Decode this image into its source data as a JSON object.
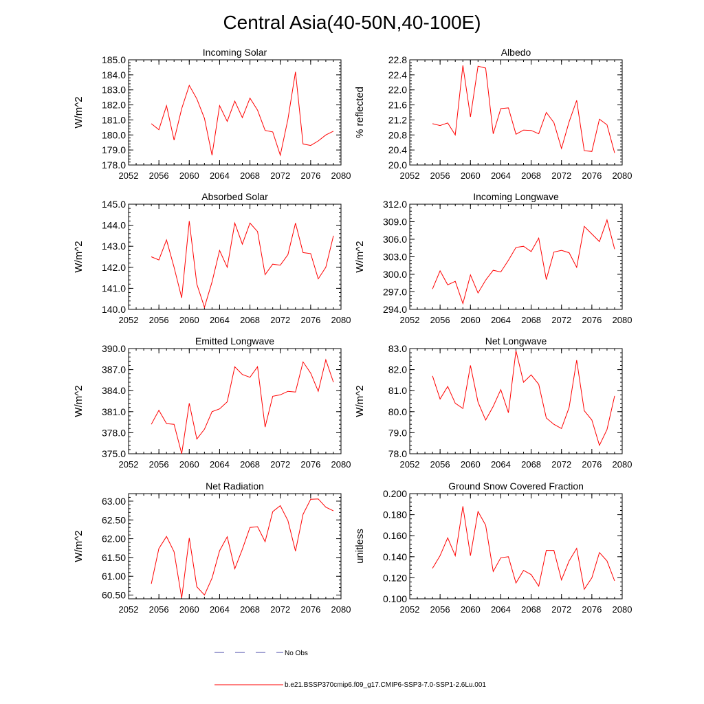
{
  "figure": {
    "title": "Central Asia(40-50N,40-100E)",
    "colors": {
      "series": "#ff0000",
      "obs": "#4a4aaa",
      "axis": "#000000"
    }
  },
  "legend": {
    "obs_label": "No Obs",
    "model_label": "b.e21.BSSP370cmip6.f09_g17.CMIP6-SSP3-7.0-SSP1-2.6Lu.001"
  },
  "chart_data": [
    {
      "type": "line",
      "title": "Incoming Solar",
      "ylabel": "W/m^2",
      "xlim": [
        2052,
        2080
      ],
      "ylim": [
        178.0,
        185.0
      ],
      "xticks": [
        2052,
        2056,
        2060,
        2064,
        2068,
        2072,
        2076,
        2080
      ],
      "xtick_labels": [
        "2052",
        "2056",
        "2060",
        "2064",
        "2068",
        "2072",
        "2076",
        "2080"
      ],
      "yticks": [
        178.0,
        179.0,
        180.0,
        181.0,
        182.0,
        183.0,
        184.0,
        185.0
      ],
      "ytick_labels": [
        "178.0",
        "179.0",
        "180.0",
        "181.0",
        "182.0",
        "183.0",
        "184.0",
        "185.0"
      ],
      "x": [
        2055,
        2056,
        2057,
        2058,
        2059,
        2060,
        2061,
        2062,
        2063,
        2064,
        2065,
        2066,
        2067,
        2068,
        2069,
        2070,
        2071,
        2072,
        2073,
        2074,
        2075,
        2076,
        2077,
        2078,
        2079
      ],
      "series": [
        {
          "name": "b.e21.BSSP370cmip6.f09_g17.CMIP6-SSP3-7.0-SSP1-2.6Lu.001",
          "values": [
            180.75,
            180.35,
            181.95,
            179.65,
            181.75,
            183.3,
            182.4,
            181.1,
            178.65,
            181.95,
            180.9,
            182.25,
            181.15,
            182.45,
            181.65,
            180.3,
            180.2,
            178.65,
            181.05,
            184.2,
            179.4,
            179.3,
            179.6,
            180.0,
            180.25
          ]
        }
      ]
    },
    {
      "type": "line",
      "title": "Albedo",
      "ylabel": "% reflected",
      "xlim": [
        2052,
        2080
      ],
      "ylim": [
        20.0,
        22.8
      ],
      "xticks": [
        2052,
        2056,
        2060,
        2064,
        2068,
        2072,
        2076,
        2080
      ],
      "xtick_labels": [
        "2052",
        "2056",
        "2060",
        "2064",
        "2068",
        "2072",
        "2076",
        "2080"
      ],
      "yticks": [
        20.0,
        20.4,
        20.8,
        21.2,
        21.6,
        22.0,
        22.4,
        22.8
      ],
      "ytick_labels": [
        "20.0",
        "20.4",
        "20.8",
        "21.2",
        "21.6",
        "22.0",
        "22.4",
        "22.8"
      ],
      "x": [
        2055,
        2056,
        2057,
        2058,
        2059,
        2060,
        2061,
        2062,
        2063,
        2064,
        2065,
        2066,
        2067,
        2068,
        2069,
        2070,
        2071,
        2072,
        2073,
        2074,
        2075,
        2076,
        2077,
        2078,
        2079
      ],
      "series": [
        {
          "name": "b.e21.BSSP370cmip6.f09_g17.CMIP6-SSP3-7.0-SSP1-2.6Lu.001",
          "values": [
            21.1,
            21.05,
            21.12,
            20.8,
            22.65,
            21.28,
            22.63,
            22.58,
            20.83,
            21.5,
            21.52,
            20.82,
            20.93,
            20.92,
            20.83,
            21.4,
            21.13,
            20.44,
            21.15,
            21.72,
            20.38,
            20.36,
            21.22,
            21.07,
            20.32
          ]
        }
      ]
    },
    {
      "type": "line",
      "title": "Absorbed Solar",
      "ylabel": "W/m^2",
      "xlim": [
        2052,
        2080
      ],
      "ylim": [
        140.0,
        145.0
      ],
      "xticks": [
        2052,
        2056,
        2060,
        2064,
        2068,
        2072,
        2076,
        2080
      ],
      "xtick_labels": [
        "2052",
        "2056",
        "2060",
        "2064",
        "2068",
        "2072",
        "2076",
        "2080"
      ],
      "yticks": [
        140.0,
        141.0,
        142.0,
        143.0,
        144.0,
        145.0
      ],
      "ytick_labels": [
        "140.0",
        "141.0",
        "142.0",
        "143.0",
        "144.0",
        "145.0"
      ],
      "x": [
        2055,
        2056,
        2057,
        2058,
        2059,
        2060,
        2061,
        2062,
        2063,
        2064,
        2065,
        2066,
        2067,
        2068,
        2069,
        2070,
        2071,
        2072,
        2073,
        2074,
        2075,
        2076,
        2077,
        2078,
        2079
      ],
      "series": [
        {
          "name": "b.e21.BSSP370cmip6.f09_g17.CMIP6-SSP3-7.0-SSP1-2.6Lu.001",
          "values": [
            142.5,
            142.35,
            143.3,
            142.0,
            140.55,
            144.2,
            141.2,
            140.1,
            141.3,
            142.8,
            142.0,
            144.1,
            143.1,
            144.1,
            143.7,
            141.65,
            142.15,
            142.1,
            142.6,
            144.1,
            142.7,
            142.65,
            141.45,
            142.0,
            143.5
          ]
        }
      ]
    },
    {
      "type": "line",
      "title": "Incoming Longwave",
      "ylabel": "W/m^2",
      "xlim": [
        2052,
        2080
      ],
      "ylim": [
        294.0,
        312.0
      ],
      "xticks": [
        2052,
        2056,
        2060,
        2064,
        2068,
        2072,
        2076,
        2080
      ],
      "xtick_labels": [
        "2052",
        "2056",
        "2060",
        "2064",
        "2068",
        "2072",
        "2076",
        "2080"
      ],
      "yticks": [
        294.0,
        297.0,
        300.0,
        303.0,
        306.0,
        309.0,
        312.0
      ],
      "ytick_labels": [
        "294.0",
        "297.0",
        "300.0",
        "303.0",
        "306.0",
        "309.0",
        "312.0"
      ],
      "x": [
        2055,
        2056,
        2057,
        2058,
        2059,
        2060,
        2061,
        2062,
        2063,
        2064,
        2065,
        2066,
        2067,
        2068,
        2069,
        2070,
        2071,
        2072,
        2073,
        2074,
        2075,
        2076,
        2077,
        2078,
        2079
      ],
      "series": [
        {
          "name": "b.e21.BSSP370cmip6.f09_g17.CMIP6-SSP3-7.0-SSP1-2.6Lu.001",
          "values": [
            297.5,
            300.6,
            298.2,
            298.8,
            295.0,
            299.9,
            296.8,
            299.0,
            300.7,
            300.4,
            302.4,
            304.6,
            304.8,
            303.9,
            306.2,
            299.1,
            303.8,
            304.1,
            303.7,
            301.2,
            308.2,
            306.9,
            305.6,
            309.3,
            304.3
          ]
        }
      ]
    },
    {
      "type": "line",
      "title": "Emitted Longwave",
      "ylabel": "W/m^2",
      "xlim": [
        2052,
        2080
      ],
      "ylim": [
        375.0,
        390.0
      ],
      "xticks": [
        2052,
        2056,
        2060,
        2064,
        2068,
        2072,
        2076,
        2080
      ],
      "xtick_labels": [
        "2052",
        "2056",
        "2060",
        "2064",
        "2068",
        "2072",
        "2076",
        "2080"
      ],
      "yticks": [
        375.0,
        378.0,
        381.0,
        384.0,
        387.0,
        390.0
      ],
      "ytick_labels": [
        "375.0",
        "378.0",
        "381.0",
        "384.0",
        "387.0",
        "390.0"
      ],
      "x": [
        2055,
        2056,
        2057,
        2058,
        2059,
        2060,
        2061,
        2062,
        2063,
        2064,
        2065,
        2066,
        2067,
        2068,
        2069,
        2070,
        2071,
        2072,
        2073,
        2074,
        2075,
        2076,
        2077,
        2078,
        2079
      ],
      "series": [
        {
          "name": "b.e21.BSSP370cmip6.f09_g17.CMIP6-SSP3-7.0-SSP1-2.6Lu.001",
          "values": [
            379.2,
            381.2,
            379.3,
            379.2,
            375.0,
            382.2,
            377.1,
            378.5,
            381.0,
            381.4,
            382.4,
            387.4,
            386.3,
            385.9,
            387.4,
            378.8,
            383.2,
            383.4,
            383.9,
            383.8,
            388.1,
            386.5,
            383.9,
            388.4,
            385.2
          ]
        }
      ]
    },
    {
      "type": "line",
      "title": "Net Longwave",
      "ylabel": "W/m^2",
      "xlim": [
        2052,
        2080
      ],
      "ylim": [
        78.0,
        83.0
      ],
      "xticks": [
        2052,
        2056,
        2060,
        2064,
        2068,
        2072,
        2076,
        2080
      ],
      "xtick_labels": [
        "2052",
        "2056",
        "2060",
        "2064",
        "2068",
        "2072",
        "2076",
        "2080"
      ],
      "yticks": [
        78.0,
        79.0,
        80.0,
        81.0,
        82.0,
        83.0
      ],
      "ytick_labels": [
        "78.0",
        "79.0",
        "80.0",
        "81.0",
        "82.0",
        "83.0"
      ],
      "x": [
        2055,
        2056,
        2057,
        2058,
        2059,
        2060,
        2061,
        2062,
        2063,
        2064,
        2065,
        2066,
        2067,
        2068,
        2069,
        2070,
        2071,
        2072,
        2073,
        2074,
        2075,
        2076,
        2077,
        2078,
        2079
      ],
      "series": [
        {
          "name": "b.e21.BSSP370cmip6.f09_g17.CMIP6-SSP3-7.0-SSP1-2.6Lu.001",
          "values": [
            81.7,
            80.6,
            81.2,
            80.4,
            80.15,
            82.2,
            80.45,
            79.6,
            80.25,
            81.05,
            79.95,
            82.9,
            81.4,
            81.75,
            81.3,
            79.7,
            79.4,
            79.2,
            80.2,
            82.45,
            80.05,
            79.6,
            78.4,
            79.15,
            80.75
          ]
        }
      ]
    },
    {
      "type": "line",
      "title": "Net Radiation",
      "ylabel": "W/m^2",
      "xlim": [
        2052,
        2080
      ],
      "ylim": [
        60.4,
        63.2
      ],
      "xticks": [
        2052,
        2056,
        2060,
        2064,
        2068,
        2072,
        2076,
        2080
      ],
      "xtick_labels": [
        "2052",
        "2056",
        "2060",
        "2064",
        "2068",
        "2072",
        "2076",
        "2080"
      ],
      "yticks": [
        60.5,
        61.0,
        61.5,
        62.0,
        62.5,
        63.0
      ],
      "ytick_labels": [
        "60.50",
        "61.00",
        "61.50",
        "62.00",
        "62.50",
        "63.00"
      ],
      "x": [
        2055,
        2056,
        2057,
        2058,
        2059,
        2060,
        2061,
        2062,
        2063,
        2064,
        2065,
        2066,
        2067,
        2068,
        2069,
        2070,
        2071,
        2072,
        2073,
        2074,
        2075,
        2076,
        2077,
        2078,
        2079
      ],
      "series": [
        {
          "name": "b.e21.BSSP370cmip6.f09_g17.CMIP6-SSP3-7.0-SSP1-2.6Lu.001",
          "values": [
            60.8,
            61.74,
            62.06,
            61.65,
            60.42,
            62.02,
            60.72,
            60.5,
            60.95,
            61.68,
            62.05,
            61.2,
            61.72,
            62.3,
            62.32,
            61.92,
            62.72,
            62.88,
            62.48,
            61.67,
            62.65,
            63.05,
            63.06,
            62.84,
            62.74
          ]
        }
      ]
    },
    {
      "type": "line",
      "title": "Ground Snow Covered Fraction",
      "ylabel": "unitless",
      "xlim": [
        2052,
        2080
      ],
      "ylim": [
        0.1,
        0.2
      ],
      "xticks": [
        2052,
        2056,
        2060,
        2064,
        2068,
        2072,
        2076,
        2080
      ],
      "xtick_labels": [
        "2052",
        "2056",
        "2060",
        "2064",
        "2068",
        "2072",
        "2076",
        "2080"
      ],
      "yticks": [
        0.1,
        0.12,
        0.14,
        0.16,
        0.18,
        0.2
      ],
      "ytick_labels": [
        "0.100",
        "0.120",
        "0.140",
        "0.160",
        "0.180",
        "0.200"
      ],
      "x": [
        2055,
        2056,
        2057,
        2058,
        2059,
        2060,
        2061,
        2062,
        2063,
        2064,
        2065,
        2066,
        2067,
        2068,
        2069,
        2070,
        2071,
        2072,
        2073,
        2074,
        2075,
        2076,
        2077,
        2078,
        2079
      ],
      "series": [
        {
          "name": "b.e21.BSSP370cmip6.f09_g17.CMIP6-SSP3-7.0-SSP1-2.6Lu.001",
          "values": [
            0.129,
            0.141,
            0.158,
            0.141,
            0.188,
            0.141,
            0.183,
            0.17,
            0.126,
            0.139,
            0.14,
            0.115,
            0.127,
            0.123,
            0.112,
            0.146,
            0.146,
            0.118,
            0.136,
            0.148,
            0.109,
            0.12,
            0.144,
            0.136,
            0.117
          ]
        }
      ]
    }
  ]
}
